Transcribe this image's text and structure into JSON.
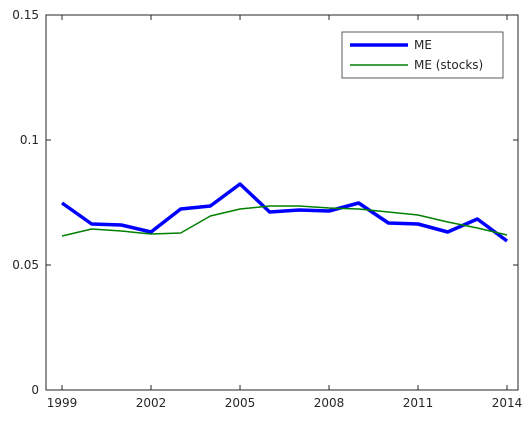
{
  "chart_data": {
    "type": "line",
    "x": [
      1999,
      2000,
      2001,
      2002,
      2003,
      2004,
      2005,
      2006,
      2007,
      2008,
      2009,
      2010,
      2011,
      2012,
      2013,
      2014
    ],
    "series": [
      {
        "name": "ME",
        "color": "#0000ff",
        "values": [
          0.0748,
          0.0664,
          0.066,
          0.0632,
          0.0724,
          0.0736,
          0.0824,
          0.0712,
          0.072,
          0.0716,
          0.0748,
          0.0668,
          0.0664,
          0.0632,
          0.0684,
          0.0596
        ]
      },
      {
        "name": "ME (stocks)",
        "color": "#008000",
        "values": [
          0.0616,
          0.0644,
          0.0636,
          0.0624,
          0.0628,
          0.0696,
          0.0724,
          0.0736,
          0.0736,
          0.0728,
          0.0724,
          0.0712,
          0.07,
          0.0672,
          0.0648,
          0.062
        ]
      }
    ],
    "xlim": [
      1998.46,
      2014.37
    ],
    "xticks": [
      1999,
      2002,
      2005,
      2008,
      2011,
      2014
    ],
    "ylim": [
      0,
      0.15
    ],
    "yticks": [
      0,
      0.05,
      0.1,
      0.15
    ],
    "legend": "upper-right"
  }
}
